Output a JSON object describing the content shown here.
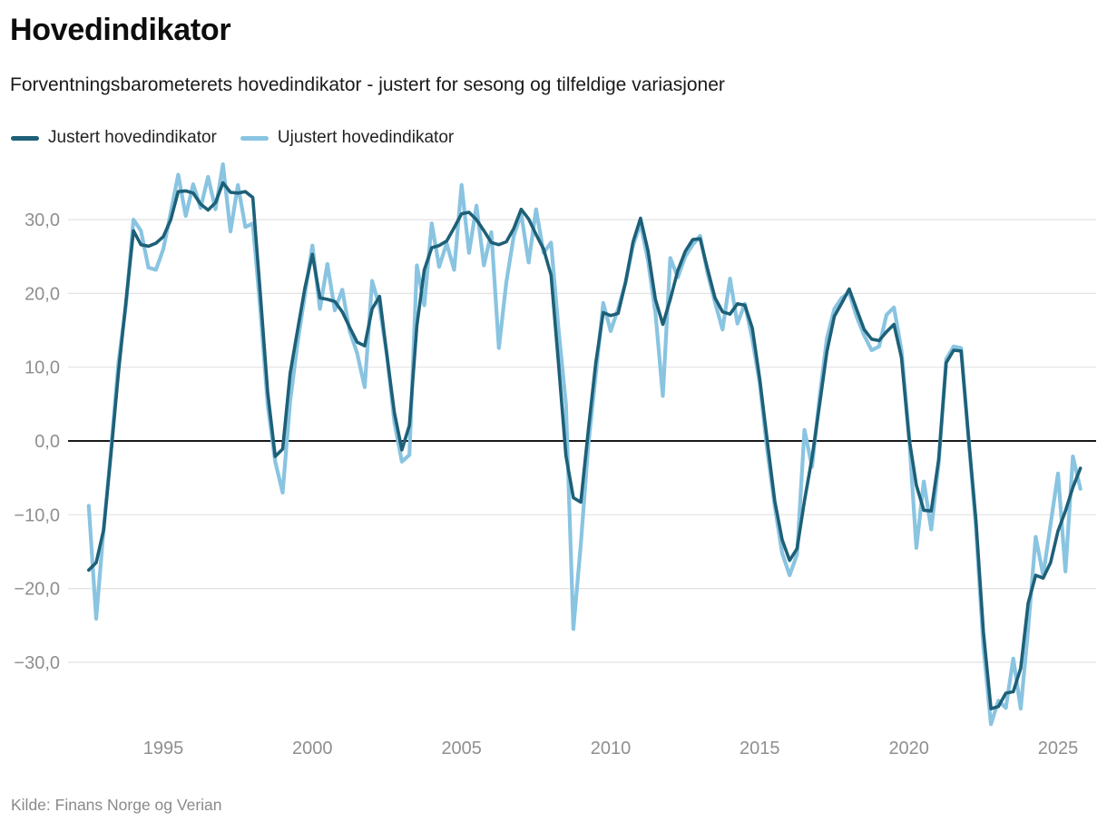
{
  "header": {
    "title": "Hovedindikator",
    "subtitle": "Forventningsbarometerets hovedindikator - justert for sesong og tilfeldige variasjoner"
  },
  "legend": [
    {
      "label": "Justert hovedindikator",
      "color": "#1d6078"
    },
    {
      "label": "Ujustert hovedindikator",
      "color": "#89c4e1"
    }
  ],
  "footer": {
    "source": "Kilde: Finans Norge og Verian"
  },
  "colors": {
    "adjusted_line": "#1d6078",
    "unadjusted_line": "#89c4e1",
    "grid_line": "#e2e2e2",
    "zero_line": "#191919",
    "axis_label": "#8f8f8f",
    "title_text": "#0d0d0d"
  },
  "chart_data": {
    "type": "line",
    "title": "Hovedindikator",
    "subtitle": "Forventningsbarometerets hovedindikator - justert for sesong og tilfeldige variasjoner",
    "source": "Kilde: Finans Norge og Verian",
    "legend_position": "top-left",
    "grid": "horizontal",
    "x_start": "1992-Q3",
    "x_frequency": "quarterly",
    "x_axis": {
      "ticks": [
        1995,
        2000,
        2005,
        2010,
        2015,
        2020,
        2025
      ],
      "range": [
        1991.8,
        2026.3
      ]
    },
    "y_axis": {
      "ticks": [
        30,
        20,
        10,
        0,
        -10,
        -20,
        -30
      ],
      "tick_labels": [
        "30,0",
        "20,0",
        "10,0",
        "0,0",
        "−10,0",
        "−20,0",
        "−30,0"
      ],
      "range": [
        -38.8,
        37.2
      ],
      "zero_line": true,
      "decimal_separator": ","
    },
    "series": [
      {
        "name": "Justert hovedindikator",
        "color": "#1d6078",
        "values": [
          -17.5,
          -16.5,
          -12,
          -1.5,
          9.5,
          19,
          28.5,
          26.6,
          26.4,
          26.8,
          27.7,
          30,
          33.8,
          33.9,
          33.6,
          32.1,
          31.3,
          32.3,
          35,
          33.7,
          33.6,
          33.8,
          33,
          20.1,
          6.6,
          -2.1,
          -1.1,
          9.1,
          15,
          20.8,
          25.3,
          19.4,
          19.2,
          18.9,
          17.5,
          15.4,
          13.4,
          12.9,
          17.9,
          19.6,
          11.5,
          3.8,
          -1.2,
          2.1,
          15.6,
          23.2,
          26.2,
          26.5,
          27.1,
          28.9,
          30.8,
          31,
          30,
          28.5,
          26.9,
          26.6,
          27,
          28.8,
          31.4,
          30.1,
          28,
          26,
          22.5,
          10.5,
          -2,
          -7.7,
          -8.3,
          1.5,
          10.6,
          17.4,
          17,
          17.3,
          21.5,
          27,
          30.2,
          25.8,
          19.2,
          15.8,
          19.2,
          23.1,
          25.7,
          27.3,
          27.4,
          23.3,
          19.4,
          17.5,
          17.2,
          18.6,
          18.4,
          15.3,
          8.4,
          0,
          -8.1,
          -13.4,
          -16.2,
          -14.6,
          -8.1,
          -2.3,
          4.8,
          12.1,
          16.9,
          18.7,
          20.6,
          17.8,
          15.1,
          13.8,
          13.6,
          14.8,
          15.8,
          11.3,
          0.5,
          -6,
          -9.4,
          -9.5,
          -2.5,
          10.6,
          12.3,
          12.2,
          0.5,
          -10.8,
          -25.9,
          -36.3,
          -36,
          -34.2,
          -34,
          -30.8,
          -22,
          -18.2,
          -18.6,
          -16.5,
          -12.2,
          -9.5,
          -6.3,
          -3.7
        ]
      },
      {
        "name": "Ujustert hovedindikator",
        "color": "#89c4e1",
        "values": [
          -8.8,
          -24.1,
          -11.8,
          -1,
          10.8,
          18.5,
          30,
          28.5,
          23.5,
          23.2,
          26,
          31,
          36.1,
          30.5,
          34.8,
          31.6,
          35.8,
          31.4,
          37.5,
          28.4,
          34.7,
          29,
          29.5,
          18,
          4.9,
          -2.8,
          -7,
          5.3,
          13.3,
          19.9,
          26.5,
          17.9,
          24,
          17.7,
          20.5,
          14.9,
          11.9,
          7.3,
          21.7,
          18.2,
          11.6,
          2.5,
          -2.8,
          -1.9,
          23.8,
          18.4,
          29.5,
          23.6,
          26.8,
          23.2,
          34.7,
          25.5,
          31.9,
          23.8,
          28.3,
          12.6,
          21.5,
          27.8,
          30.8,
          24.2,
          31.4,
          25.5,
          26.9,
          15.2,
          5,
          -25.5,
          -14,
          -0.5,
          9,
          18.7,
          14.9,
          17.9,
          21.5,
          26.5,
          29.5,
          24.5,
          17.4,
          6.1,
          24.8,
          22.2,
          25,
          26.6,
          27.8,
          22.7,
          18.8,
          15.1,
          22,
          15.9,
          18.6,
          13.8,
          7.8,
          -1.3,
          -8.8,
          -15.2,
          -18.2,
          -15.4,
          1.5,
          -3.5,
          5.8,
          13.9,
          17.9,
          19.4,
          20.1,
          16.8,
          14.3,
          12.3,
          12.8,
          17.1,
          18.1,
          12.3,
          1,
          -14.5,
          -5.5,
          -12,
          -3,
          11.1,
          12.8,
          12.6,
          0.3,
          -11.8,
          -27.9,
          -38.4,
          -35.2,
          -36.2,
          -29.5,
          -36.3,
          -25.5,
          -13,
          -18.2,
          -11.3,
          -4.4,
          -17.7,
          -2.1,
          -6.5
        ]
      }
    ]
  }
}
